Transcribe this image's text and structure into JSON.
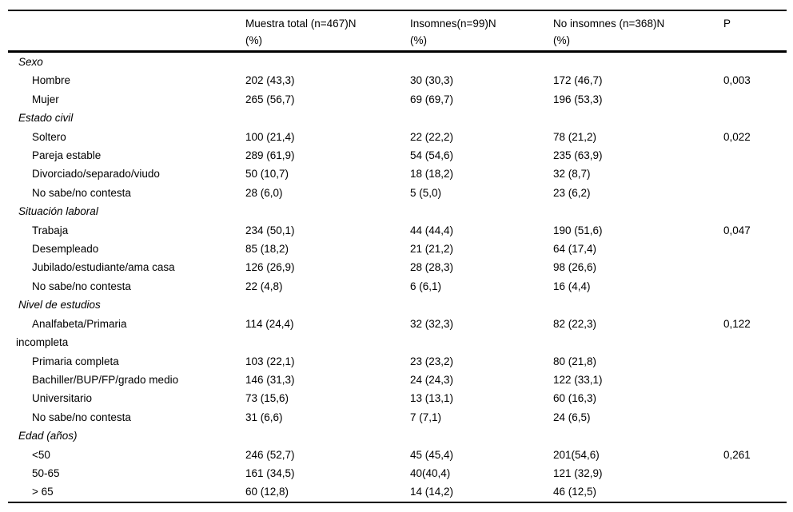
{
  "table": {
    "header": {
      "label_col": "",
      "cols": [
        {
          "line1": "Muestra total (n=467)N",
          "line2": "(%)"
        },
        {
          "line1": "Insomnes(n=99)N",
          "line2": "(%)"
        },
        {
          "line1": "No insomnes (n=368)N",
          "line2": "(%)"
        },
        {
          "line1": "P",
          "line2": ""
        }
      ]
    },
    "sections": [
      {
        "title": "Sexo",
        "rows": [
          {
            "label": "Hombre",
            "values": [
              "202 (43,3)",
              "30 (30,3)",
              "172 (46,7)",
              "0,003"
            ]
          },
          {
            "label": "Mujer",
            "values": [
              "265 (56,7)",
              "69 (69,7)",
              "196 (53,3)",
              ""
            ]
          }
        ]
      },
      {
        "title": "Estado civil",
        "rows": [
          {
            "label": "Soltero",
            "values": [
              "100 (21,4)",
              "22 (22,2)",
              "78 (21,2)",
              "0,022"
            ]
          },
          {
            "label": "Pareja estable",
            "values": [
              "289 (61,9)",
              "54 (54,6)",
              "235 (63,9)",
              ""
            ]
          },
          {
            "label": "Divorciado/separado/viudo",
            "values": [
              "50 (10,7)",
              "18 (18,2)",
              "32 (8,7)",
              ""
            ]
          },
          {
            "label": "No sabe/no contesta",
            "values": [
              "28 (6,0)",
              "5 (5,0)",
              "23 (6,2)",
              ""
            ]
          }
        ]
      },
      {
        "title": "Situación laboral",
        "rows": [
          {
            "label": "Trabaja",
            "values": [
              "234 (50,1)",
              "44 (44,4)",
              "190 (51,6)",
              "0,047"
            ]
          },
          {
            "label": "Desempleado",
            "values": [
              "85 (18,2)",
              "21 (21,2)",
              "64 (17,4)",
              ""
            ]
          },
          {
            "label": "Jubilado/estudiante/ama casa",
            "values": [
              "126 (26,9)",
              "28 (28,3)",
              "98 (26,6)",
              ""
            ]
          },
          {
            "label": "No sabe/no contesta",
            "values": [
              "22 (4,8)",
              "6 (6,1)",
              "16 (4,4)",
              ""
            ]
          }
        ]
      },
      {
        "title": "Nivel de estudios",
        "rows": [
          {
            "label": "Analfabeta/Primaria\nincompleta",
            "values": [
              "114 (24,4)",
              "32 (32,3)",
              "82 (22,3)",
              "0,122"
            ]
          },
          {
            "label": "Primaria completa",
            "values": [
              "103 (22,1)",
              "23 (23,2)",
              "80 (21,8)",
              ""
            ]
          },
          {
            "label": "Bachiller/BUP/FP/grado medio",
            "values": [
              "146 (31,3)",
              "24 (24,3)",
              "122 (33,1)",
              ""
            ]
          },
          {
            "label": "Universitario",
            "values": [
              "73 (15,6)",
              "13 (13,1)",
              "60 (16,3)",
              ""
            ]
          },
          {
            "label": "No sabe/no contesta",
            "values": [
              "31 (6,6)",
              "7 (7,1)",
              "24 (6,5)",
              ""
            ]
          }
        ]
      },
      {
        "title": "Edad (años)",
        "rows": [
          {
            "label": "<50",
            "values": [
              "246 (52,7)",
              "45 (45,4)",
              "201(54,6)",
              "0,261"
            ]
          },
          {
            "label": "50-65",
            "values": [
              "161 (34,5)",
              "40(40,4)",
              "121 (32,9)",
              ""
            ]
          },
          {
            "label": "> 65",
            "values": [
              "60 (12,8)",
              "14 (14,2)",
              "46 (12,5)",
              ""
            ]
          }
        ]
      }
    ]
  }
}
